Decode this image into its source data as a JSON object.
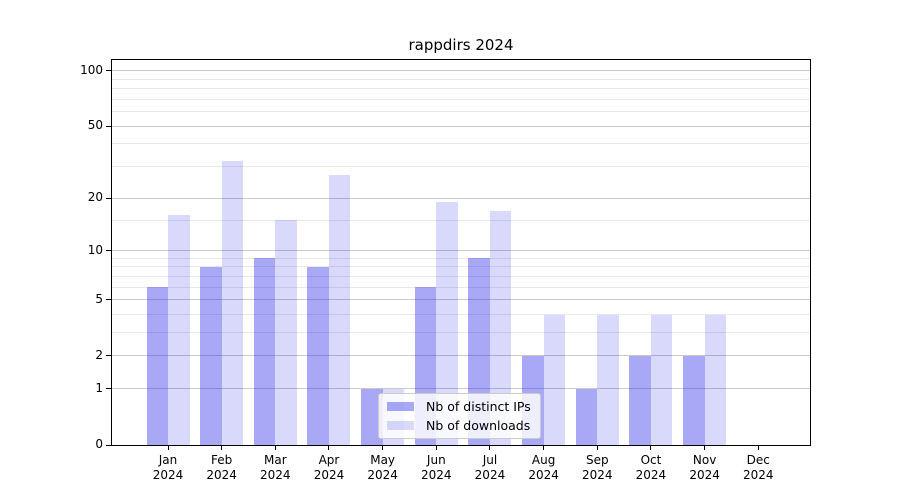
{
  "title": "rappdirs 2024",
  "colors": {
    "ips_bar": "rgba(30,30,235,0.39)",
    "downloads_bar": "rgba(30,30,235,0.17)",
    "grid_major": "#c9c9c9",
    "grid_minor": "#e8e8e8",
    "axis": "#000000",
    "legend_border": "#cccccc"
  },
  "legend": {
    "items": [
      {
        "label": "Nb of distinct IPs",
        "series": "ips"
      },
      {
        "label": "Nb of downloads",
        "series": "downloads"
      }
    ]
  },
  "chart_data": {
    "type": "bar",
    "title": "rappdirs 2024",
    "xlabel": "",
    "ylabel": "",
    "months": [
      "Jan",
      "Feb",
      "Mar",
      "Apr",
      "May",
      "Jun",
      "Jul",
      "Aug",
      "Sep",
      "Oct",
      "Nov",
      "Dec"
    ],
    "year": "2024",
    "series": [
      {
        "name": "Nb of distinct IPs",
        "values": [
          6,
          8,
          9,
          8,
          1,
          6,
          9,
          2,
          1,
          2,
          2,
          0
        ]
      },
      {
        "name": "Nb of downloads",
        "values": [
          16,
          32,
          15,
          27,
          1,
          19,
          17,
          4,
          4,
          4,
          4,
          0
        ]
      }
    ],
    "y_scale": "log1p",
    "y_ticks": [
      0,
      1,
      2,
      5,
      10,
      20,
      50,
      100
    ],
    "y_minor_ticks": [
      3,
      4,
      6,
      7,
      8,
      9,
      15,
      30,
      40,
      60,
      70,
      80,
      90
    ],
    "ylim": [
      0,
      115
    ],
    "grid": true,
    "legend_position": "lower center"
  }
}
